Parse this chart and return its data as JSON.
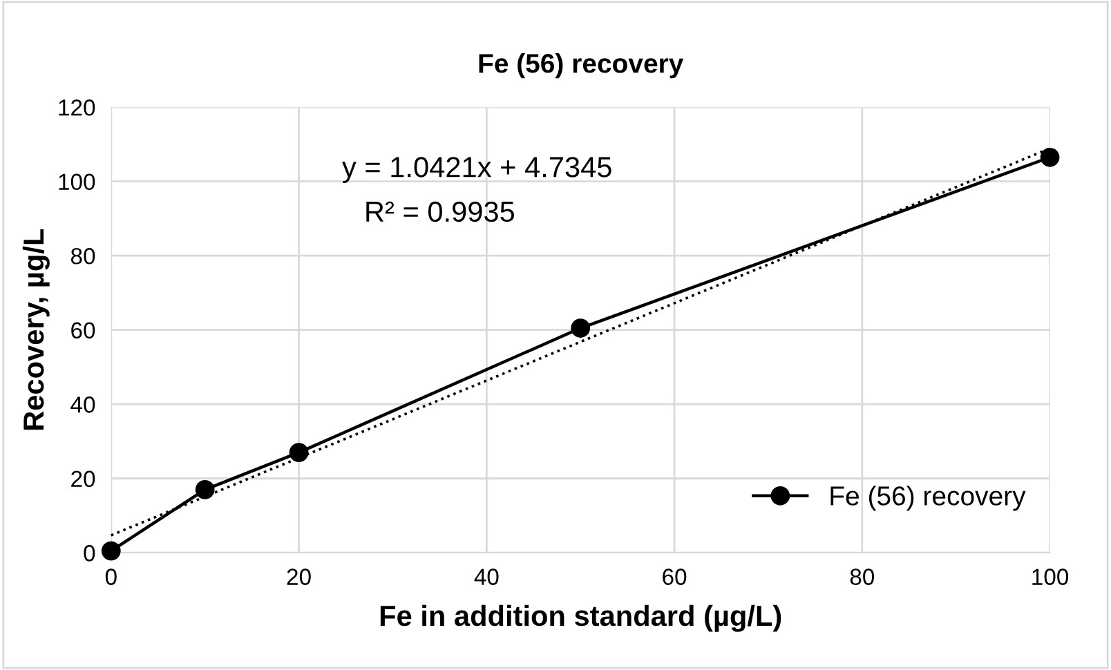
{
  "chart_data": {
    "type": "line",
    "title": "Fe (56) recovery",
    "xlabel": "Fe in addition standard (µg/L)",
    "ylabel": "Recovery, µg/L",
    "x": [
      0,
      10,
      20,
      50,
      100
    ],
    "series": [
      {
        "name": "Fe (56) recovery",
        "color": "#000000",
        "values": [
          0.5,
          17,
          27,
          60.5,
          106.5
        ],
        "marker": "circle",
        "line_style": "solid"
      },
      {
        "type": "line",
        "color": "#000000",
        "x": [
          0,
          100
        ],
        "values": [
          4.7,
          108.9
        ],
        "marker": "none",
        "line_style": "dotted"
      }
    ],
    "annotations": [
      "y = 1.0421x + 4.7345",
      "R² = 0.9935"
    ],
    "xlim": [
      0,
      100
    ],
    "xticks": [
      0,
      20,
      40,
      60,
      80,
      100
    ],
    "ylim": [
      0,
      120
    ],
    "yticks": [
      0,
      20,
      40,
      60,
      80,
      100,
      120
    ],
    "grid": true,
    "legend": "bottom right"
  }
}
